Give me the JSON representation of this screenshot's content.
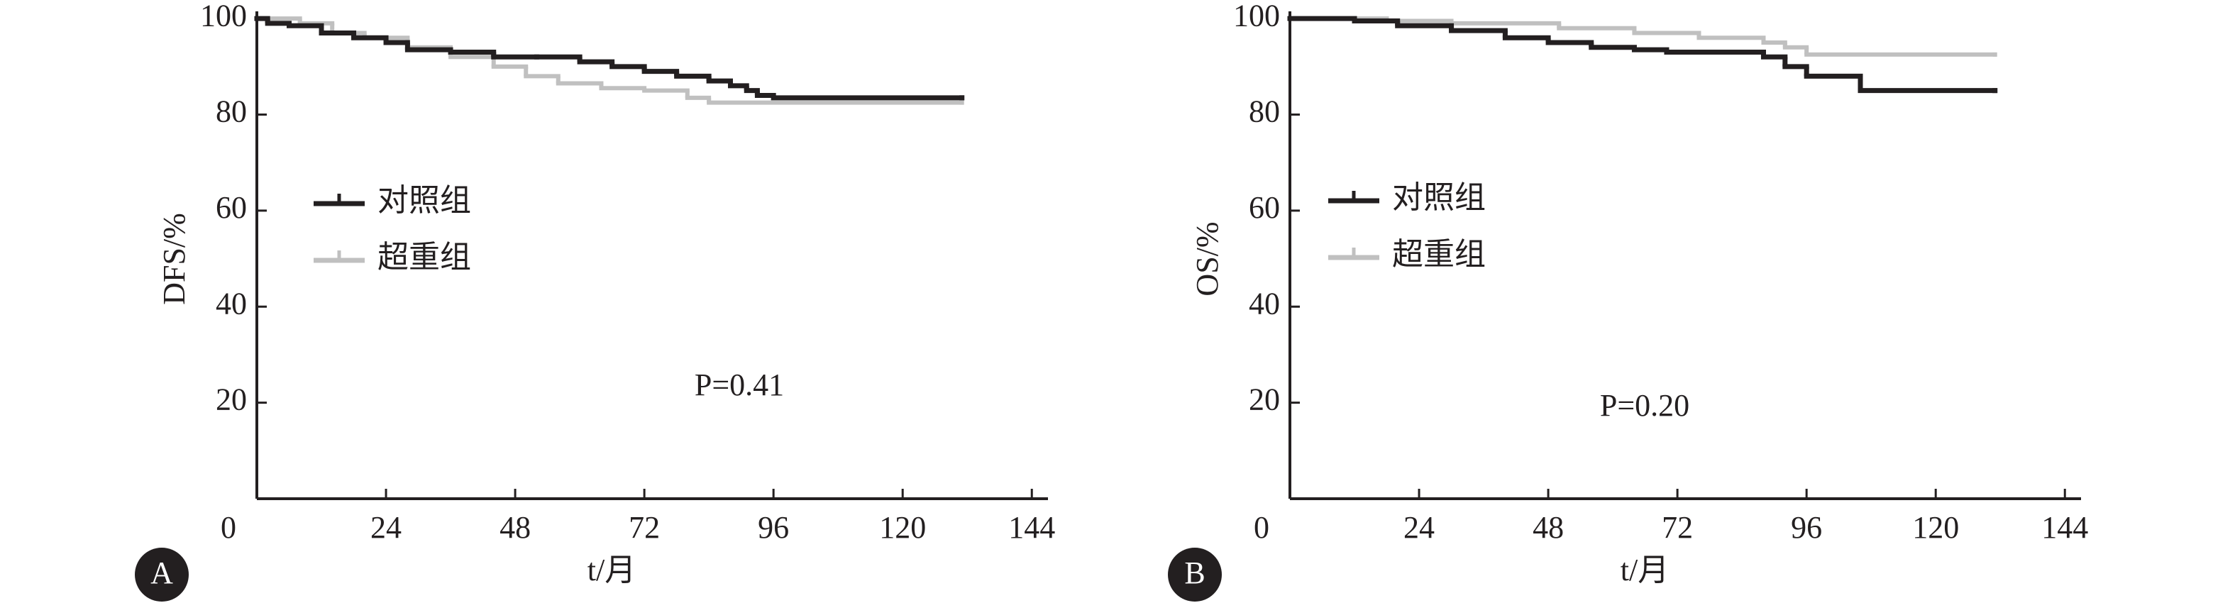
{
  "chart_data": [
    {
      "type": "line",
      "step": true,
      "panel": "A",
      "xlabel": "t/月",
      "ylabel": "DFS/%",
      "annotation": "P=0.41",
      "xlim": [
        0,
        147
      ],
      "ylim": [
        0,
        101.5
      ],
      "xticks": [
        0,
        24,
        48,
        72,
        96,
        120,
        144
      ],
      "yticks": [
        20,
        40,
        60,
        80,
        100
      ],
      "series": [
        {
          "name": "对照组",
          "color": "#231f20",
          "x": [
            0,
            2,
            6,
            12,
            18,
            24,
            28,
            36,
            44,
            52,
            60,
            66,
            72,
            78,
            84,
            88,
            91,
            93,
            96,
            131
          ],
          "values": [
            100,
            99,
            98.5,
            97,
            96,
            95,
            93.5,
            93,
            92,
            92,
            91,
            90,
            89,
            88,
            87,
            86,
            85,
            84,
            83.5,
            83.5
          ]
        },
        {
          "name": "超重组",
          "color": "#c0c0c0",
          "x": [
            0,
            8,
            14,
            20,
            28,
            36,
            44,
            50,
            56,
            64,
            72,
            80,
            84,
            131
          ],
          "values": [
            100,
            99,
            97,
            96,
            94,
            92,
            90,
            88,
            86.5,
            85.5,
            85,
            83.5,
            82.5,
            82.5
          ]
        }
      ]
    },
    {
      "type": "line",
      "step": true,
      "panel": "B",
      "xlabel": "t/月",
      "ylabel": "OS/%",
      "annotation": "P=0.20",
      "xlim": [
        0,
        147
      ],
      "ylim": [
        0,
        101.5
      ],
      "xticks": [
        0,
        24,
        48,
        72,
        96,
        120,
        144
      ],
      "yticks": [
        20,
        40,
        60,
        80,
        100
      ],
      "series": [
        {
          "name": "对照组",
          "color": "#231f20",
          "x": [
            0,
            12,
            20,
            30,
            40,
            48,
            56,
            64,
            70,
            88,
            92,
            96,
            106,
            131
          ],
          "values": [
            100,
            99.5,
            98.5,
            97.5,
            96,
            95,
            94,
            93.5,
            93,
            92,
            90,
            88,
            85,
            85
          ]
        },
        {
          "name": "超重组",
          "color": "#c0c0c0",
          "x": [
            0,
            18,
            30,
            50,
            64,
            76,
            88,
            92,
            96,
            131
          ],
          "values": [
            100,
            99.5,
            99,
            98,
            97,
            96,
            95,
            94,
            92.5,
            92.5
          ]
        }
      ]
    }
  ]
}
